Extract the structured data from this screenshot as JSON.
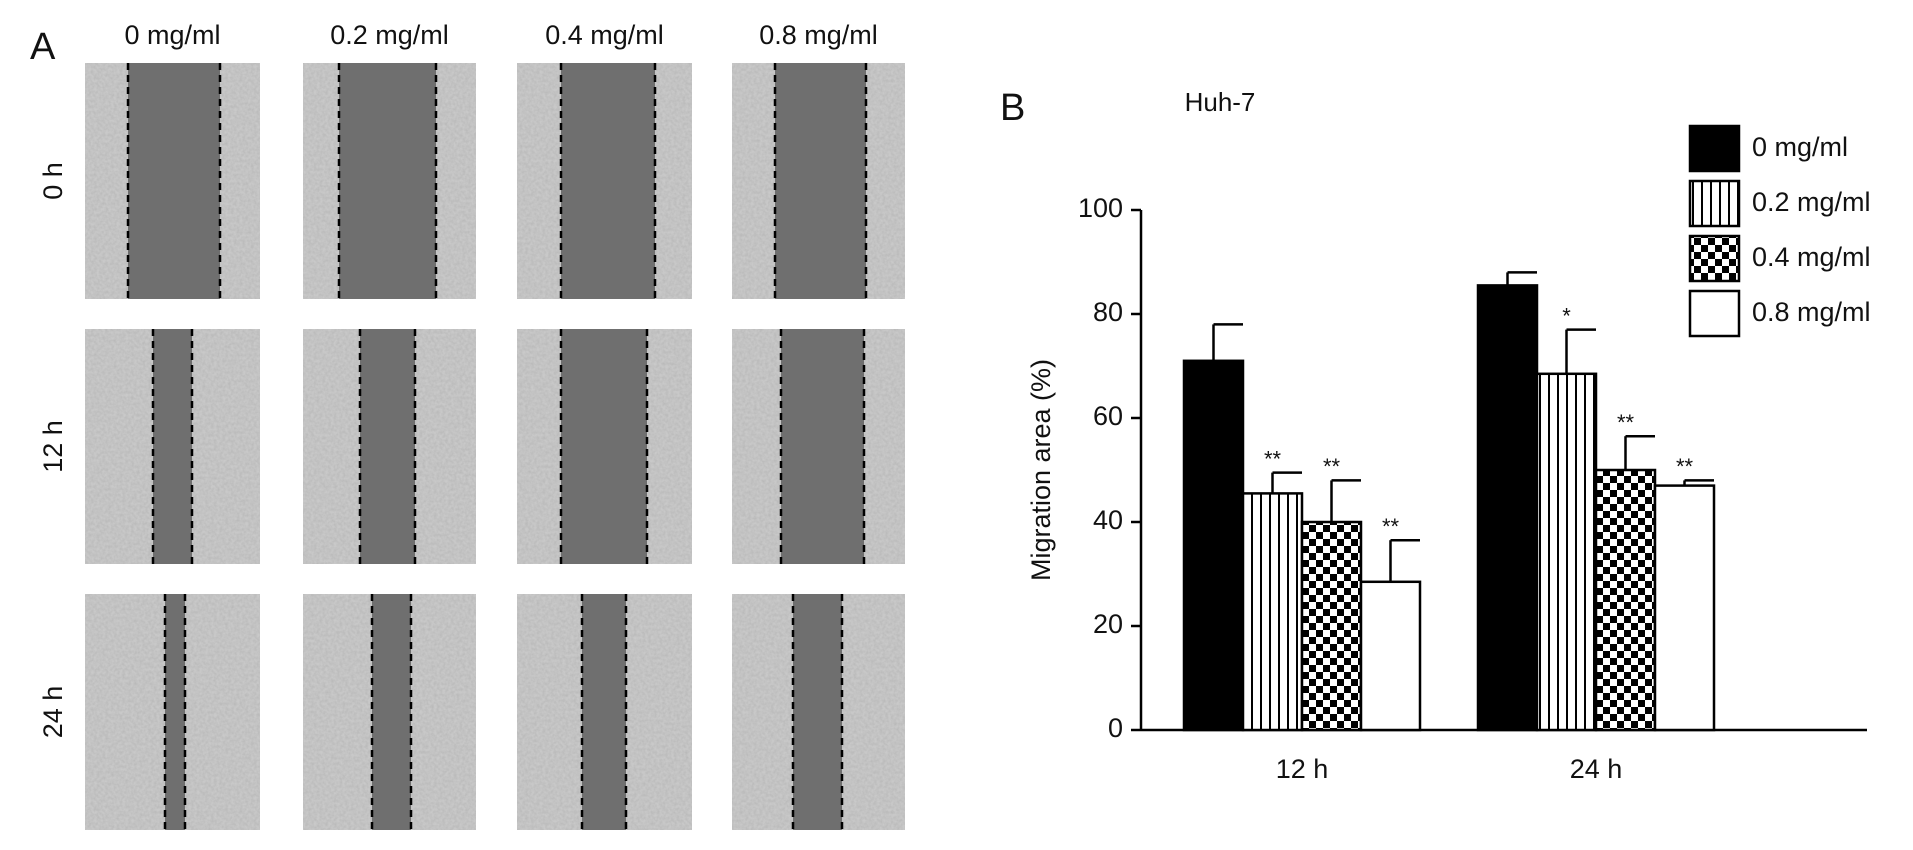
{
  "panel_a": {
    "label": "A",
    "columns": [
      "0 mg/ml",
      "0.2 mg/ml",
      "0.4 mg/ml",
      "0.8 mg/ml"
    ],
    "rows": [
      "0 h",
      "12 h",
      "24 h"
    ]
  },
  "chart_data": {
    "type": "bar",
    "panel_label": "B",
    "title": "Huh-7",
    "y_label": "Migration area (%)",
    "categories": [
      "12 h",
      "24 h"
    ],
    "series": [
      {
        "name": "0 mg/ml",
        "color": "#000000",
        "pattern": "solid",
        "values": [
          71,
          85.5
        ],
        "errors": [
          7,
          2.5
        ],
        "significance": [
          null,
          null
        ]
      },
      {
        "name": "0.2 mg/ml",
        "color": "#000000",
        "pattern": "vertical-lines",
        "values": [
          45.5,
          68.5
        ],
        "errors": [
          4,
          8.5
        ],
        "significance": [
          "**",
          "*"
        ]
      },
      {
        "name": "0.4 mg/ml",
        "color": "#000000",
        "pattern": "checker",
        "values": [
          40,
          50
        ],
        "errors": [
          8,
          6.5
        ],
        "significance": [
          "**",
          "**"
        ]
      },
      {
        "name": "0.8 mg/ml",
        "color": "#000000",
        "pattern": "none",
        "values": [
          28.5,
          47
        ],
        "errors": [
          8,
          1
        ],
        "significance": [
          "**",
          "**"
        ]
      }
    ],
    "ylim": [
      0,
      100
    ],
    "yticks": [
      0,
      20,
      40,
      60,
      80,
      100
    ],
    "grid": false,
    "legend": "upper right"
  }
}
